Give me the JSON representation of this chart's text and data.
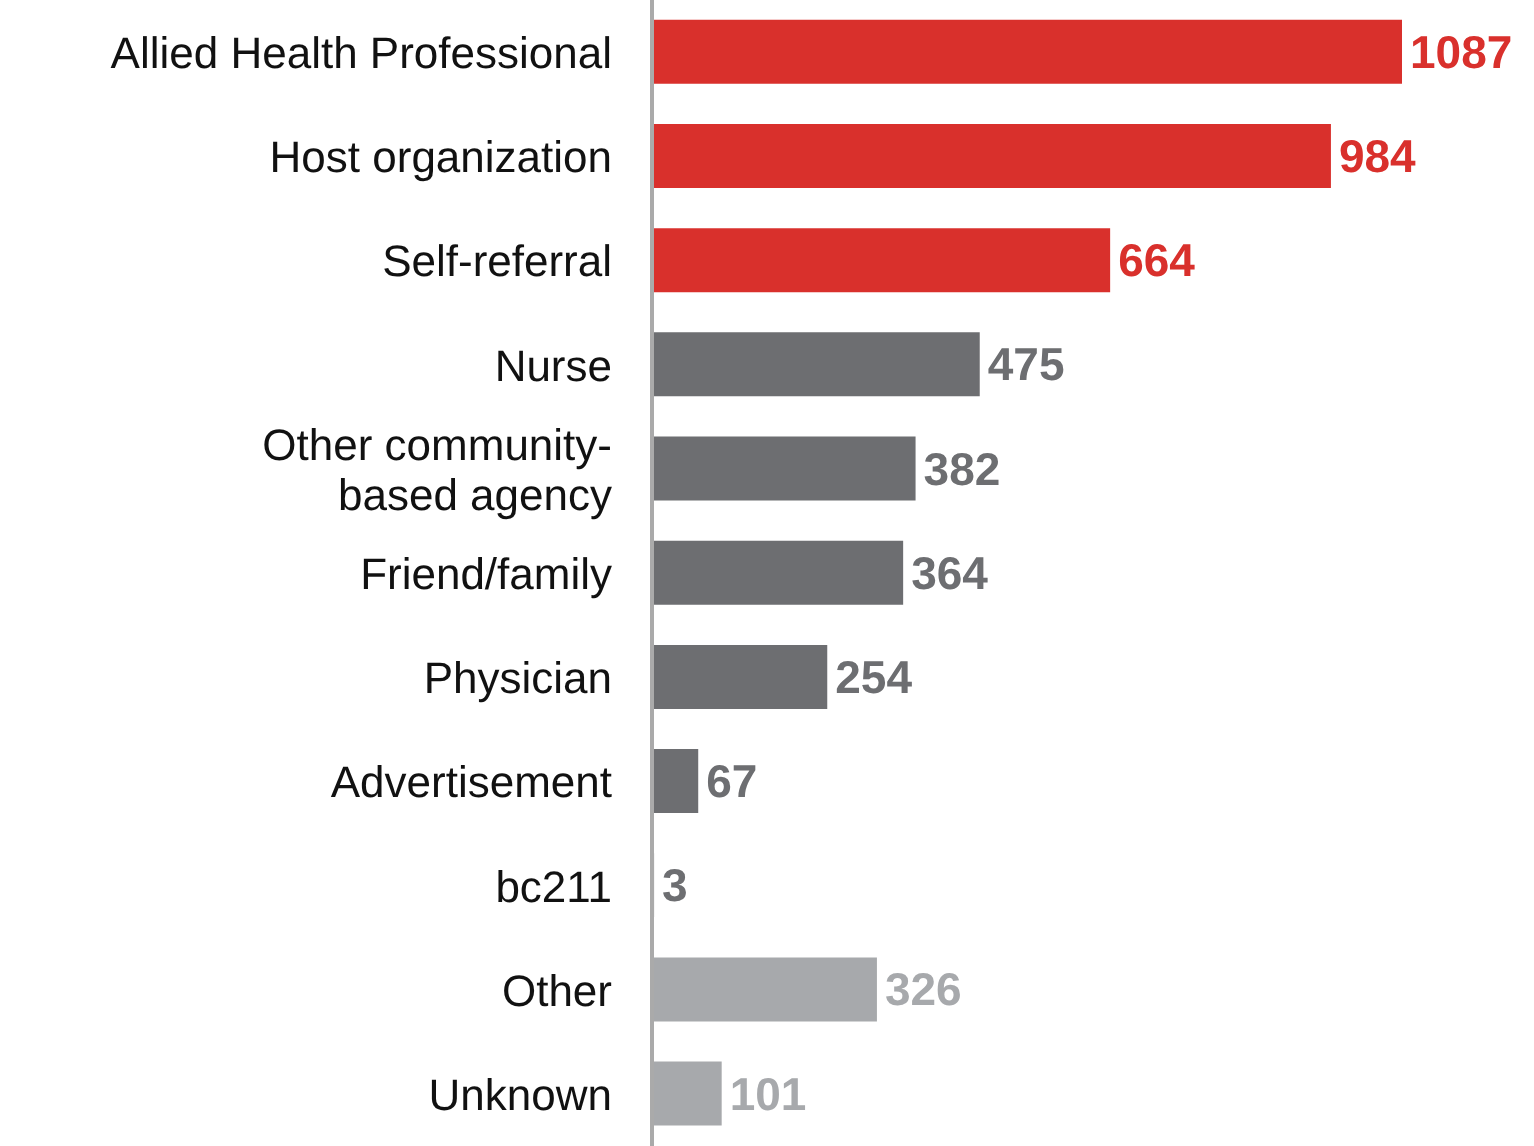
{
  "chart_data": {
    "type": "bar",
    "orientation": "horizontal",
    "categories": [
      "Allied Health Professional",
      "Host organization",
      "Self-referral",
      "Nurse",
      "Other community-based agency",
      "Friend/family",
      "Physician",
      "Advertisement",
      "bc211",
      "Other",
      "Unknown"
    ],
    "values": [
      1087,
      984,
      664,
      475,
      382,
      364,
      254,
      67,
      3,
      326,
      101
    ],
    "colors": [
      "#d9302c",
      "#d9302c",
      "#d9302c",
      "#6d6e71",
      "#6d6e71",
      "#6d6e71",
      "#6d6e71",
      "#6d6e71",
      "#6d6e71",
      "#a7a9ac",
      "#a7a9ac"
    ],
    "data_labels": true,
    "grid": false,
    "legend": false
  }
}
